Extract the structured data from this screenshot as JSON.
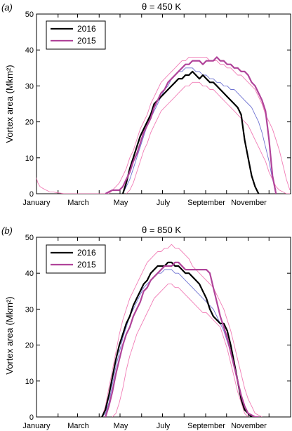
{
  "figure": {
    "colors": {
      "y2016": "#000000",
      "y2015": "#b0449a",
      "climatology": "#6f73d2",
      "envelope": "#ef6fae"
    }
  },
  "chart_data": [
    {
      "type": "line",
      "panel_label": "(a)",
      "title": "θ = 450 K",
      "ylabel": "Vortex area (Mkm²)",
      "xlabel": "",
      "x_units": "day of year",
      "xlim": [
        1,
        366
      ],
      "ylim": [
        0,
        50
      ],
      "yticks": [
        0,
        10,
        20,
        30,
        40,
        50
      ],
      "xtick_labels": [
        "January",
        "March",
        "May",
        "July",
        "September",
        "November"
      ],
      "xtick_days": [
        1,
        61,
        122,
        183,
        245,
        306
      ],
      "legend": {
        "position": "top-left",
        "entries": [
          "2016",
          "2015"
        ]
      },
      "series": [
        {
          "name": "2016",
          "style": "thick-black",
          "x": [
            125,
            130,
            135,
            140,
            145,
            150,
            155,
            160,
            165,
            170,
            175,
            180,
            185,
            190,
            195,
            200,
            205,
            210,
            215,
            220,
            225,
            230,
            235,
            240,
            245,
            250,
            255,
            260,
            265,
            270,
            275,
            280,
            285,
            290,
            295,
            300,
            305,
            310,
            315,
            320
          ],
          "y": [
            0,
            3,
            7,
            10,
            13,
            16,
            18,
            20,
            22,
            25,
            26,
            27,
            28,
            29,
            30,
            31,
            32,
            32,
            33,
            33,
            34,
            33,
            32,
            33,
            32,
            31,
            31,
            30,
            29,
            28,
            27,
            26,
            25,
            24,
            22,
            15,
            10,
            5,
            2,
            0
          ]
        },
        {
          "name": "2015",
          "style": "thick-magenta",
          "x": [
            100,
            105,
            110,
            115,
            120,
            125,
            130,
            135,
            140,
            145,
            150,
            155,
            160,
            165,
            170,
            175,
            180,
            185,
            190,
            195,
            200,
            205,
            210,
            215,
            220,
            225,
            230,
            235,
            240,
            245,
            250,
            255,
            260,
            265,
            270,
            275,
            280,
            285,
            290,
            295,
            300,
            305,
            310,
            315,
            320,
            325,
            330,
            335,
            340,
            345
          ],
          "y": [
            0,
            0.5,
            1,
            1,
            1,
            2,
            4,
            6,
            9,
            11,
            14,
            17,
            19,
            21,
            24,
            26,
            28,
            29,
            31,
            32,
            33,
            34,
            35,
            36,
            36,
            37,
            37,
            37,
            36,
            37,
            37,
            37,
            38,
            37,
            37,
            36,
            36,
            35,
            35,
            34,
            34,
            33,
            31,
            30,
            28,
            26,
            23,
            15,
            5,
            0
          ]
        },
        {
          "name": "",
          "style": "thin-climatology",
          "x": [
            125,
            130,
            135,
            140,
            145,
            150,
            155,
            160,
            165,
            170,
            175,
            180,
            185,
            190,
            195,
            200,
            205,
            210,
            215,
            220,
            225,
            230,
            235,
            240,
            245,
            250,
            255,
            260,
            265,
            270,
            275,
            280,
            285,
            290,
            295,
            300,
            305,
            310,
            315,
            320,
            325,
            330,
            335,
            340,
            345
          ],
          "y": [
            0,
            2,
            4,
            7,
            10,
            13,
            16,
            19,
            21,
            23,
            25,
            27,
            29,
            30,
            32,
            33,
            34,
            34,
            35,
            35,
            35,
            34,
            34,
            33,
            33,
            32,
            32,
            31,
            31,
            30,
            30,
            29,
            29,
            28,
            27,
            26,
            25,
            24,
            22,
            20,
            17,
            13,
            9,
            4,
            1
          ]
        },
        {
          "name": "",
          "style": "thin-envelope",
          "x": [
            0,
            3,
            6,
            10,
            15,
            20,
            25,
            30,
            35,
            40,
            45,
            50,
            55,
            60,
            70,
            80,
            90,
            100,
            105,
            110,
            115,
            120,
            125,
            130,
            135,
            140,
            145,
            150,
            155,
            160,
            165,
            170,
            175,
            180,
            185,
            190,
            195,
            200,
            205,
            210,
            215,
            220,
            225,
            230,
            235,
            240,
            245,
            250,
            255,
            260,
            265,
            270,
            275,
            280,
            285,
            290,
            295,
            300,
            305,
            310,
            315,
            320,
            325,
            330,
            335,
            340,
            345,
            350,
            355,
            360,
            365
          ],
          "y": [
            5,
            3,
            2,
            1.5,
            1,
            0.5,
            0.5,
            0.3,
            0.2,
            0,
            0,
            0,
            0,
            0,
            0,
            0,
            0,
            0,
            0,
            1,
            2,
            3,
            5,
            7,
            10,
            12,
            15,
            18,
            20,
            22,
            25,
            27,
            29,
            31,
            32,
            33,
            34,
            35,
            36,
            37,
            37,
            38,
            38,
            38,
            38,
            38,
            38,
            37,
            37,
            37,
            36,
            36,
            35,
            35,
            34,
            33,
            33,
            32,
            31,
            30,
            29,
            27,
            25,
            22,
            20,
            18,
            15,
            12,
            8,
            4,
            1
          ]
        },
        {
          "name": "",
          "style": "thin-envelope",
          "x": [
            130,
            135,
            140,
            145,
            150,
            155,
            160,
            165,
            170,
            175,
            180,
            185,
            190,
            195,
            200,
            205,
            210,
            215,
            220,
            225,
            230,
            235,
            240,
            245,
            250,
            255,
            260,
            265,
            270,
            275,
            280,
            285,
            290,
            295,
            300,
            305,
            310,
            315,
            320,
            325,
            330,
            335,
            340,
            345,
            350,
            355,
            360,
            365
          ],
          "y": [
            0,
            1,
            3,
            6,
            9,
            12,
            14,
            17,
            19,
            21,
            23,
            24,
            25,
            26,
            27,
            28,
            29,
            30,
            30,
            31,
            31,
            31,
            30,
            30,
            29,
            29,
            28,
            27,
            26,
            25,
            24,
            23,
            22,
            21,
            20,
            19,
            17,
            15,
            13,
            11,
            9,
            6,
            4,
            2,
            1,
            0.5,
            0,
            0
          ]
        }
      ]
    },
    {
      "type": "line",
      "panel_label": "(b)",
      "title": "θ = 850 K",
      "ylabel": "Vortex area (Mkm²)",
      "xlabel": "",
      "x_units": "day of year",
      "xlim": [
        1,
        366
      ],
      "ylim": [
        0,
        50
      ],
      "yticks": [
        0,
        10,
        20,
        30,
        40,
        50
      ],
      "xtick_labels": [
        "January",
        "March",
        "May",
        "July",
        "September",
        "November"
      ],
      "xtick_days": [
        1,
        61,
        122,
        183,
        245,
        306
      ],
      "legend": {
        "position": "top-left",
        "entries": [
          "2016",
          "2015"
        ]
      },
      "series": [
        {
          "name": "2016",
          "style": "thick-black",
          "x": [
            95,
            100,
            105,
            110,
            115,
            120,
            125,
            130,
            135,
            140,
            145,
            150,
            155,
            160,
            165,
            170,
            175,
            180,
            185,
            190,
            195,
            200,
            205,
            210,
            215,
            220,
            225,
            230,
            235,
            240,
            245,
            250,
            255,
            260,
            265,
            270,
            275,
            280,
            285,
            290,
            295,
            300,
            305,
            310
          ],
          "y": [
            0,
            2,
            6,
            11,
            16,
            20,
            23,
            26,
            28,
            31,
            33,
            35,
            37,
            38,
            40,
            41,
            42,
            42,
            42,
            43,
            43,
            42,
            42,
            41,
            40,
            40,
            39,
            38,
            37,
            35,
            33,
            30,
            28,
            27,
            26,
            26,
            24,
            20,
            15,
            10,
            5,
            2,
            1,
            0
          ]
        },
        {
          "name": "2015",
          "style": "thick-magenta",
          "x": [
            100,
            105,
            110,
            115,
            120,
            125,
            130,
            135,
            140,
            145,
            150,
            155,
            160,
            165,
            170,
            175,
            180,
            185,
            190,
            195,
            200,
            205,
            210,
            215,
            220,
            225,
            230,
            235,
            240,
            245,
            250,
            255,
            260,
            265,
            270,
            275,
            280,
            285,
            290,
            295,
            300,
            305,
            310,
            315,
            320
          ],
          "y": [
            0,
            3,
            7,
            12,
            16,
            20,
            23,
            25,
            28,
            30,
            32,
            35,
            36,
            38,
            39,
            40,
            41,
            42,
            42,
            42,
            43,
            43,
            42,
            41,
            41,
            41,
            41,
            41,
            41,
            41,
            40,
            36,
            32,
            28,
            25,
            22,
            18,
            14,
            10,
            6,
            3,
            1,
            0.5,
            0,
            0
          ]
        },
        {
          "name": "",
          "style": "thin-climatology",
          "x": [
            95,
            100,
            105,
            110,
            115,
            120,
            125,
            130,
            135,
            140,
            145,
            150,
            155,
            160,
            165,
            170,
            175,
            180,
            185,
            190,
            195,
            200,
            205,
            210,
            215,
            220,
            225,
            230,
            235,
            240,
            245,
            250,
            255,
            260,
            265,
            270,
            275,
            280,
            285,
            290,
            295,
            300,
            305,
            310,
            315
          ],
          "y": [
            0,
            1,
            4,
            9,
            14,
            18,
            22,
            25,
            28,
            30,
            32,
            34,
            36,
            37,
            38,
            39,
            40,
            40,
            41,
            41,
            41,
            40,
            40,
            39,
            38,
            37,
            36,
            35,
            34,
            33,
            32,
            31,
            30,
            28,
            26,
            24,
            21,
            18,
            14,
            10,
            6,
            3,
            1,
            0.5,
            0
          ]
        },
        {
          "name": "",
          "style": "thin-envelope",
          "x": [
            95,
            100,
            105,
            110,
            115,
            120,
            125,
            130,
            135,
            140,
            145,
            150,
            155,
            160,
            165,
            170,
            175,
            180,
            185,
            190,
            195,
            200,
            205,
            210,
            215,
            220,
            225,
            230,
            235,
            240,
            245,
            250,
            255,
            260,
            265,
            270,
            275,
            280,
            285,
            290,
            295,
            300,
            305,
            310,
            315,
            320,
            325
          ],
          "y": [
            0,
            3,
            8,
            13,
            18,
            23,
            27,
            30,
            33,
            35,
            37,
            39,
            41,
            43,
            44,
            45,
            46,
            46,
            47,
            47,
            48,
            47,
            47,
            46,
            45,
            44,
            42,
            41,
            40,
            39,
            38,
            37,
            36,
            34,
            32,
            30,
            27,
            24,
            20,
            16,
            12,
            8,
            5,
            3,
            1,
            0.5,
            0
          ]
        },
        {
          "name": "",
          "style": "thin-envelope",
          "x": [
            110,
            115,
            120,
            125,
            130,
            135,
            140,
            145,
            150,
            155,
            160,
            165,
            170,
            175,
            180,
            185,
            190,
            195,
            200,
            205,
            210,
            215,
            220,
            225,
            230,
            235,
            240,
            245,
            250,
            255,
            260,
            265,
            270,
            275,
            280,
            285,
            290,
            295,
            300,
            305
          ],
          "y": [
            0,
            1,
            4,
            8,
            13,
            17,
            20,
            23,
            25,
            27,
            29,
            31,
            33,
            34,
            35,
            36,
            37,
            37,
            36,
            36,
            35,
            34,
            33,
            32,
            31,
            30,
            29,
            29,
            28,
            27,
            26,
            25,
            22,
            19,
            15,
            11,
            7,
            4,
            1,
            0
          ]
        }
      ]
    }
  ]
}
